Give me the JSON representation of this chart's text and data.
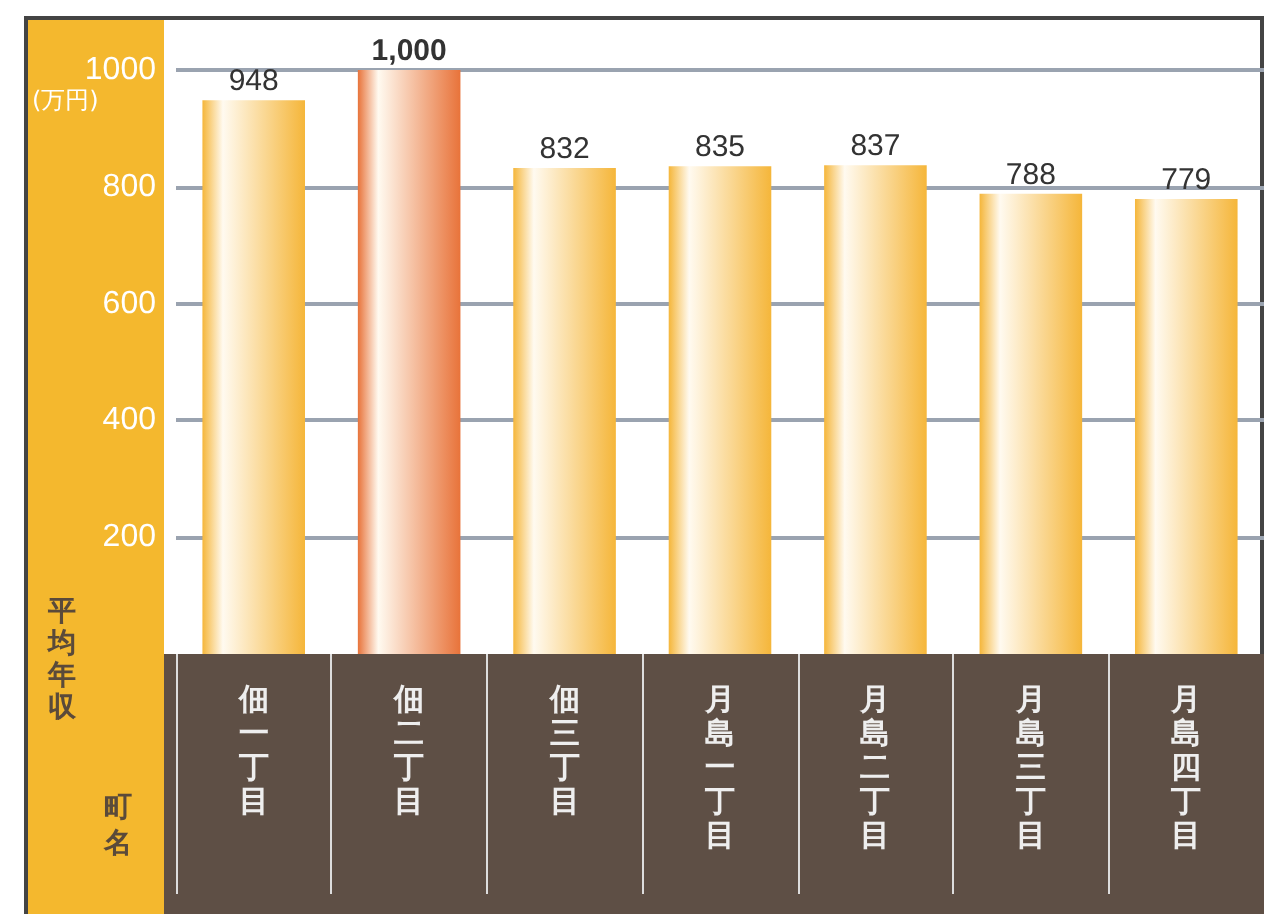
{
  "chart_data": {
    "type": "bar",
    "ylabel": "平均年収",
    "xlabel": "町名",
    "annotations": [
      "(万円)"
    ],
    "categories": [
      "佃一丁目",
      "佃二丁目",
      "佃三丁目",
      "月島一丁目",
      "月島二丁目",
      "月島三丁目",
      "月島四丁目"
    ],
    "values": [
      948,
      1000,
      832,
      835,
      837,
      788,
      779
    ],
    "value_labels": [
      "948",
      "1,000",
      "832",
      "835",
      "837",
      "788",
      "779"
    ],
    "colors": [
      "#f5b63a",
      "#e8733a",
      "#f5b63a",
      "#f5b63a",
      "#f5b63a",
      "#f5b63a",
      "#f5b63a"
    ],
    "ylim": [
      0,
      1000
    ],
    "yticks": [
      200,
      400,
      600,
      800,
      1000
    ],
    "grid": "y"
  }
}
